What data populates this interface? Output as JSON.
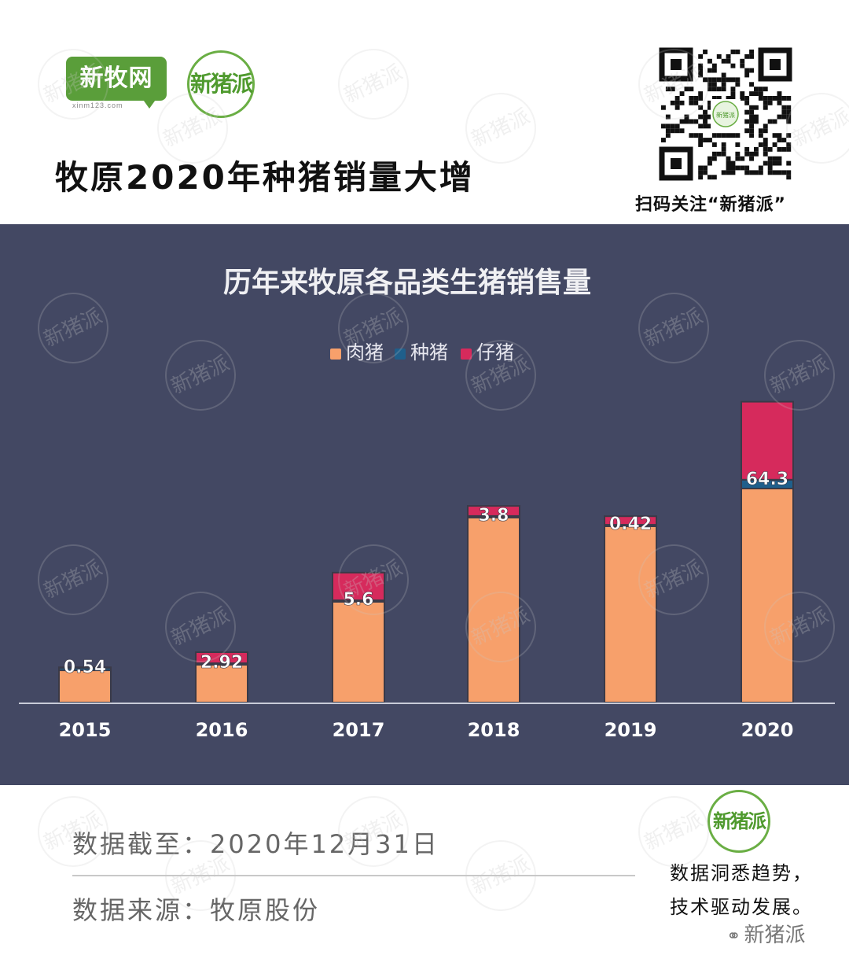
{
  "header": {
    "logo_xmw": "新牧网",
    "logo_xmw_sub": "xinm123.com",
    "logo_xzp": "新猪派",
    "title": "牧原2020年种猪销量大增",
    "qr_center": "新猪派",
    "qr_caption": "扫码关注“新猪派”"
  },
  "chart_data": {
    "type": "bar",
    "stacked": true,
    "title": "历年来牧原各品类生猪销售量",
    "categories": [
      "2015",
      "2016",
      "2017",
      "2018",
      "2019",
      "2020"
    ],
    "series": [
      {
        "name": "肉猪",
        "color": "#f7a06b",
        "values": [
          1.28,
          1.5,
          4.0,
          7.35,
          7.0,
          8.5
        ]
      },
      {
        "name": "种猪",
        "color": "#1f5f8b",
        "values": [
          0.1,
          0.06,
          0.06,
          0.06,
          0.06,
          0.35
        ]
      },
      {
        "name": "仔猪",
        "color": "#d62a5c",
        "values": [
          0.02,
          0.44,
          1.1,
          0.4,
          0.34,
          3.1
        ]
      }
    ],
    "data_labels": [
      "0.54",
      "2.92",
      "5.6",
      "3.8",
      "0.42",
      "64.3"
    ],
    "legend_position": "top-center",
    "ylim": [
      0,
      12.5
    ],
    "grid": false,
    "axis_color": "#c8cbd8",
    "background": "#434863"
  },
  "footer": {
    "date_text": "数据截至：2020年12月31日",
    "source_text": "数据来源：牧原股份",
    "badge": "新猪派",
    "slogan_1": "数据洞悉趋势，",
    "slogan_2": "技术驱动发展。",
    "wechat_mark": "新猪派",
    "wechat_icon": "wechat-icon"
  },
  "watermark_text": "新猪派"
}
